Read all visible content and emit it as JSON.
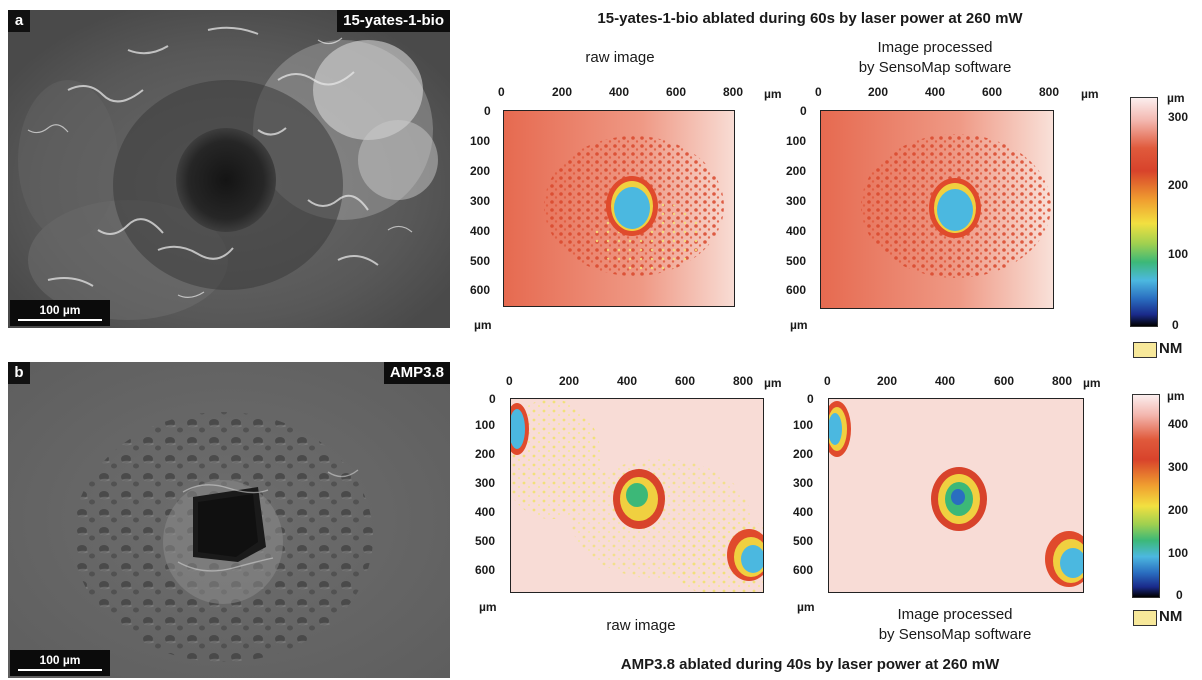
{
  "panel_a": {
    "letter": "a",
    "sample": "15-yates-1-bio",
    "scale_bar": "100 µm",
    "title": "15-yates-1-bio ablated during 60s by laser power at 260 mW",
    "caption_raw": "raw image",
    "caption_processed_line1": "Image processed",
    "caption_processed_line2": "by SensoMap software",
    "x_ticks": [
      "0",
      "200",
      "400",
      "600",
      "800"
    ],
    "y_ticks": [
      "0",
      "100",
      "200",
      "300",
      "400",
      "500",
      "600"
    ],
    "unit": "µm",
    "colorbar_ticks": [
      "300",
      "200",
      "100",
      "0"
    ],
    "colorbar_unit": "µm",
    "nm_label": "NM"
  },
  "panel_b": {
    "letter": "b",
    "sample": "AMP3.8",
    "scale_bar": "100 µm",
    "title": "AMP3.8 ablated during 40s by laser power at 260 mW",
    "caption_raw": "raw image",
    "caption_processed_line1": "Image processed",
    "caption_processed_line2": "by SensoMap software",
    "x_ticks": [
      "0",
      "200",
      "400",
      "600",
      "800"
    ],
    "y_ticks": [
      "0",
      "100",
      "200",
      "300",
      "400",
      "500",
      "600"
    ],
    "unit": "µm",
    "colorbar_ticks": [
      "400",
      "300",
      "200",
      "100",
      "0"
    ],
    "colorbar_unit": "µm",
    "nm_label": "NM"
  },
  "colors": {
    "map_background_a": "#e8785c",
    "map_background_b": "#f7dcd6",
    "crater": "#4bb8e0",
    "nm_fill": "#f7e89a"
  }
}
